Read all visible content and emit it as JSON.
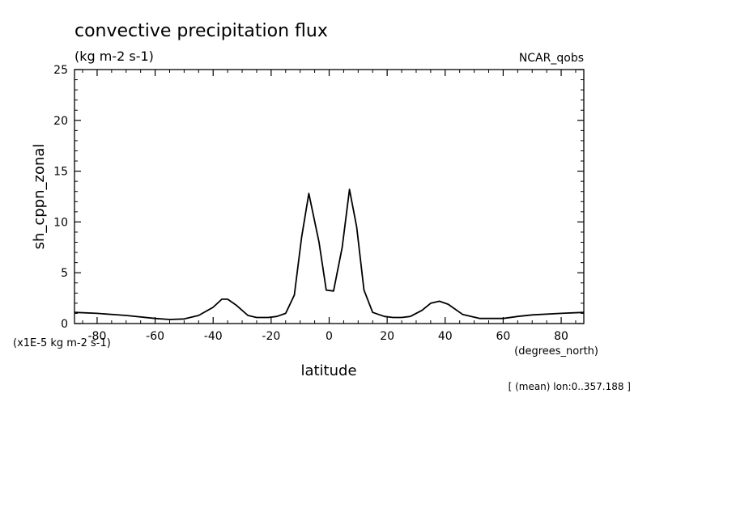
{
  "chart_data": {
    "type": "line",
    "title": "convective precipitation flux",
    "subtitle": "(kg m-2 s-1)",
    "dataset_label": "NCAR_qobs",
    "xlabel": "latitude",
    "xunit": "(degrees_north)",
    "ylabel": "sh_cppn_zonal",
    "yunit": "(x1E-5 kg m-2 s-1)",
    "footnote": "[ (mean) lon:0..357.188 ]",
    "xlim": [
      -87.8,
      87.8
    ],
    "ylim": [
      0,
      25
    ],
    "xticks": [
      -80,
      -60,
      -40,
      -20,
      0,
      20,
      40,
      60,
      80
    ],
    "xticklabels": [
      "-80",
      "-60",
      "-40",
      "-20",
      "0",
      "20",
      "40",
      "60",
      "80"
    ],
    "yticks": [
      0,
      5,
      10,
      15,
      20,
      25
    ],
    "yticklabels": [
      "0",
      "5",
      "10",
      "15",
      "20",
      "25"
    ],
    "grid": false,
    "series": [
      {
        "x": [
          -87.8,
          -80,
          -70,
          -60,
          -55,
          -50,
          -45,
          -40,
          -37,
          -35,
          -32,
          -28,
          -25,
          -21,
          -18,
          -15,
          -12,
          -9.5,
          -7,
          -3.5,
          -1,
          1.5,
          4.5,
          7,
          9.5,
          12,
          15,
          19,
          22,
          25,
          28,
          32,
          35,
          38,
          41,
          46,
          52,
          60,
          65,
          70,
          80,
          87.8
        ],
        "y": [
          1.1,
          1.0,
          0.8,
          0.5,
          0.4,
          0.45,
          0.8,
          1.6,
          2.4,
          2.4,
          1.8,
          0.8,
          0.6,
          0.6,
          0.7,
          1.0,
          2.8,
          8.5,
          12.8,
          8.0,
          3.3,
          3.2,
          7.5,
          13.2,
          9.5,
          3.3,
          1.1,
          0.7,
          0.6,
          0.6,
          0.7,
          1.3,
          2.0,
          2.2,
          1.9,
          0.9,
          0.5,
          0.5,
          0.7,
          0.85,
          1.0,
          1.1
        ]
      }
    ]
  }
}
